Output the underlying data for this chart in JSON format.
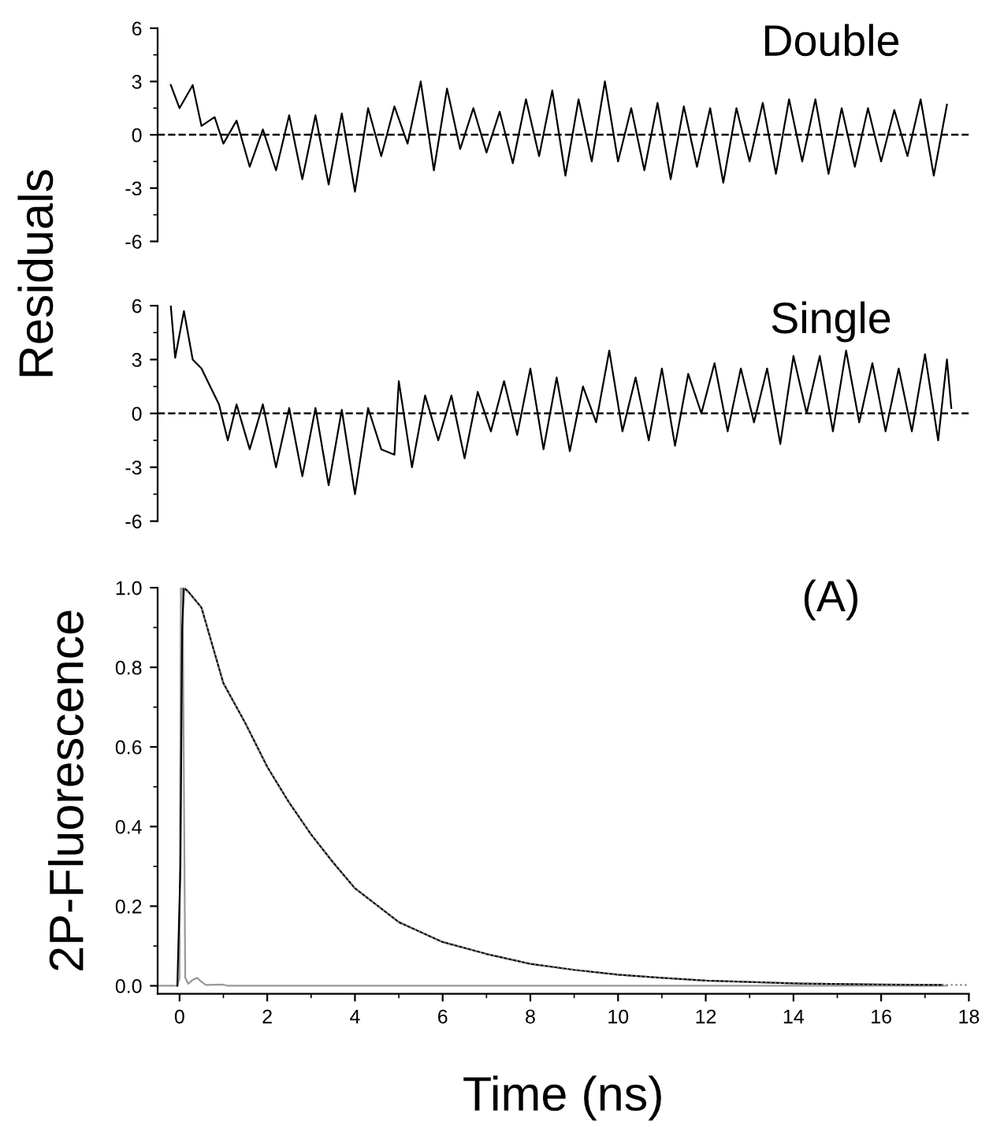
{
  "chart_data": [
    {
      "type": "line",
      "ylabel": "Residuals",
      "annotations": [
        "Double"
      ],
      "xlim": [
        -0.5,
        18
      ],
      "ylim": [
        -6,
        6
      ],
      "yticks": [
        -6,
        -3,
        0,
        3,
        6
      ],
      "tick_labels": "y",
      "grid": false,
      "legend": false,
      "ref_lines": [
        {
          "axis": "y",
          "value": 0,
          "color": "#000000",
          "line_style": "dashed"
        }
      ],
      "series": [
        {
          "color": "#000000",
          "line_style": "solid",
          "x": [
            -0.2,
            0,
            0.3,
            0.5,
            0.8,
            1.0,
            1.3,
            1.6,
            1.9,
            2.2,
            2.5,
            2.8,
            3.1,
            3.4,
            3.7,
            4.0,
            4.3,
            4.6,
            4.9,
            5.2,
            5.5,
            5.8,
            6.1,
            6.4,
            6.7,
            7.0,
            7.3,
            7.6,
            7.9,
            8.2,
            8.5,
            8.8,
            9.1,
            9.4,
            9.7,
            10.0,
            10.3,
            10.6,
            10.9,
            11.2,
            11.5,
            11.8,
            12.1,
            12.4,
            12.7,
            13.0,
            13.3,
            13.6,
            13.9,
            14.2,
            14.5,
            14.8,
            15.1,
            15.4,
            15.7,
            16.0,
            16.3,
            16.6,
            16.9,
            17.2,
            17.5
          ],
          "values": [
            2.8,
            1.5,
            2.8,
            0.5,
            1.0,
            -0.5,
            0.8,
            -1.8,
            0.3,
            -2.0,
            1.1,
            -2.5,
            1.1,
            -2.8,
            1.2,
            -3.2,
            1.5,
            -1.2,
            1.6,
            -0.5,
            3.0,
            -2.0,
            2.6,
            -0.8,
            1.5,
            -1.0,
            1.3,
            -1.6,
            2.0,
            -1.2,
            2.5,
            -2.3,
            2.0,
            -1.5,
            3.0,
            -1.5,
            1.5,
            -2.0,
            1.8,
            -2.5,
            1.6,
            -1.8,
            1.5,
            -2.7,
            1.5,
            -1.5,
            1.8,
            -2.2,
            2.0,
            -1.5,
            2.0,
            -2.2,
            1.5,
            -1.8,
            1.5,
            -1.5,
            1.4,
            -1.2,
            2.0,
            -2.3,
            1.7
          ]
        }
      ]
    },
    {
      "type": "line",
      "annotations": [
        "Single"
      ],
      "xlim": [
        -0.5,
        18
      ],
      "ylim": [
        -6,
        6
      ],
      "yticks": [
        -6,
        -3,
        0,
        3,
        6
      ],
      "tick_labels": "y",
      "grid": false,
      "legend": false,
      "ref_lines": [
        {
          "axis": "y",
          "value": 0,
          "color": "#000000",
          "line_style": "dashed"
        }
      ],
      "series": [
        {
          "color": "#000000",
          "line_style": "solid",
          "x": [
            -0.2,
            -0.1,
            0.1,
            0.3,
            0.5,
            0.7,
            0.9,
            1.1,
            1.3,
            1.6,
            1.9,
            2.2,
            2.5,
            2.8,
            3.1,
            3.4,
            3.7,
            4.0,
            4.3,
            4.6,
            4.9,
            5.0,
            5.3,
            5.6,
            5.9,
            6.2,
            6.5,
            6.8,
            7.1,
            7.4,
            7.7,
            8.0,
            8.3,
            8.6,
            8.9,
            9.2,
            9.5,
            9.8,
            10.1,
            10.4,
            10.7,
            11.0,
            11.3,
            11.6,
            11.9,
            12.2,
            12.5,
            12.8,
            13.1,
            13.4,
            13.7,
            14.0,
            14.3,
            14.6,
            14.9,
            15.2,
            15.5,
            15.8,
            16.1,
            16.4,
            16.7,
            17.0,
            17.3,
            17.5,
            17.6
          ],
          "values": [
            6.0,
            3.1,
            5.7,
            3.0,
            2.5,
            1.5,
            0.5,
            -1.5,
            0.5,
            -2.0,
            0.5,
            -3.0,
            0.3,
            -3.5,
            0.3,
            -4.0,
            0.2,
            -4.5,
            0.3,
            -2.0,
            -2.3,
            1.8,
            -3.0,
            1.0,
            -1.5,
            1.0,
            -2.5,
            1.2,
            -1.0,
            1.8,
            -1.2,
            2.5,
            -2.0,
            2.0,
            -2.1,
            1.5,
            -0.5,
            3.5,
            -1.0,
            2.0,
            -1.5,
            2.5,
            -1.8,
            2.2,
            0.0,
            2.8,
            -1.0,
            2.5,
            -0.5,
            2.5,
            -1.7,
            3.2,
            0.0,
            3.2,
            -1.0,
            3.5,
            -0.5,
            2.8,
            -1.0,
            2.5,
            -1.0,
            3.3,
            -1.5,
            3.0,
            0.3
          ]
        }
      ]
    },
    {
      "type": "line",
      "xlabel": "Time (ns)",
      "ylabel": "2P-Fluorescence",
      "annotations": [
        "(A)"
      ],
      "xlim": [
        -0.5,
        18
      ],
      "xticks": [
        0,
        2,
        4,
        6,
        8,
        10,
        12,
        14,
        16,
        18
      ],
      "ylim": [
        -0.02,
        1.0
      ],
      "yticks": [
        {
          "value": 0,
          "label": "0.0"
        },
        {
          "value": 0.2,
          "label": "0.2"
        },
        {
          "value": 0.4,
          "label": "0.4"
        },
        {
          "value": 0.6,
          "label": "0.6"
        },
        {
          "value": 0.8,
          "label": "0.8"
        },
        {
          "value": 1.0,
          "label": "1.0"
        }
      ],
      "grid": false,
      "legend": false,
      "series": [
        {
          "color": "#999999",
          "line_style": "solid",
          "x": [
            -0.5,
            -0.05,
            0.0,
            0.03,
            0.07,
            0.1,
            0.13,
            0.2,
            0.3,
            0.4,
            0.5,
            0.6,
            1.0,
            1.1,
            17.5
          ],
          "values": [
            0,
            0,
            0.02,
            1.0,
            1.0,
            0.5,
            0.02,
            0.005,
            0.015,
            0.02,
            0.01,
            0.002,
            0.003,
            0,
            0
          ]
        },
        {
          "color": "#000000",
          "line_style": "solid",
          "x": [
            -0.05,
            0.02,
            0.06,
            0.1,
            0.2,
            0.5,
            1.0,
            1.5,
            2.0,
            2.5,
            3.0,
            3.5,
            4.0,
            5.0,
            6.0,
            7.0,
            8.0,
            9.0,
            10.0,
            11.0,
            12.0,
            14.0,
            16.0,
            17.4
          ],
          "values": [
            0,
            0.3,
            0.9,
            1.0,
            0.99,
            0.95,
            0.76,
            0.66,
            0.55,
            0.46,
            0.38,
            0.31,
            0.245,
            0.16,
            0.11,
            0.08,
            0.055,
            0.04,
            0.028,
            0.02,
            0.013,
            0.006,
            0.003,
            0.002
          ]
        },
        {
          "color": "#808080",
          "line_style": "dotted",
          "x": [
            0.1,
            0.5,
            1.0,
            1.5,
            2.0,
            2.5,
            3.0,
            3.5,
            4.0,
            5.0,
            6.0,
            7.0,
            8.0,
            9.0,
            10.0,
            11.0,
            12.0,
            14.0,
            16.0,
            18.0
          ],
          "values": [
            1.0,
            0.95,
            0.76,
            0.66,
            0.55,
            0.46,
            0.38,
            0.31,
            0.245,
            0.16,
            0.11,
            0.08,
            0.055,
            0.04,
            0.028,
            0.02,
            0.013,
            0.006,
            0.003,
            0.002
          ]
        }
      ]
    }
  ]
}
